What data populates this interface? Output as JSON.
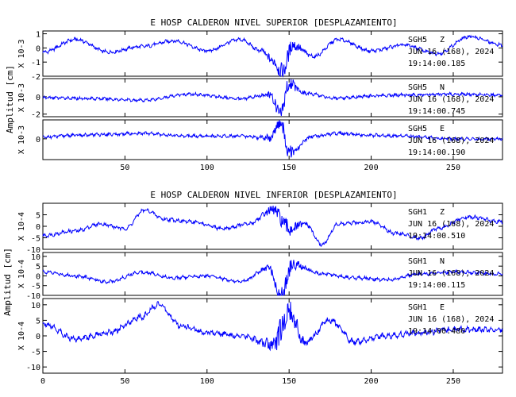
{
  "colors": {
    "trace": "#0000ff",
    "axis": "#000000",
    "background": "#ffffff"
  },
  "chart_data": [
    {
      "type": "line",
      "title": "E HOSP CALDERON NIVEL SUPERIOR [DESPLAZAMIENTO]",
      "ylabel": "Amplitud [cm]",
      "xlim": [
        0,
        280
      ],
      "xticks": [
        50,
        100,
        150,
        200,
        250
      ],
      "xtick_labels": [
        "50",
        "100",
        "150",
        "200",
        "250"
      ],
      "grid": false,
      "panels": [
        {
          "station": "SGH5",
          "component": "Z",
          "date": "JUN 16 (168), 2024",
          "time": "19:14:00.185",
          "scale_label": "X 10-3",
          "ylim": [
            -2,
            1.2
          ],
          "yticks": [
            -2,
            -1,
            0,
            1
          ],
          "ytick_labels": [
            "-2",
            "-1",
            "0",
            "1"
          ],
          "points": [
            [
              0,
              -0.3
            ],
            [
              20,
              0.6
            ],
            [
              40,
              -0.3
            ],
            [
              60,
              0.1
            ],
            [
              80,
              0.5
            ],
            [
              100,
              -0.2
            ],
            [
              120,
              0.6
            ],
            [
              133,
              -0.2
            ],
            [
              140,
              -0.9
            ],
            [
              146,
              -1.7
            ],
            [
              152,
              0.2
            ],
            [
              165,
              -0.6
            ],
            [
              180,
              0.6
            ],
            [
              200,
              -0.2
            ],
            [
              220,
              0.2
            ],
            [
              240,
              -0.4
            ],
            [
              260,
              0.8
            ],
            [
              280,
              0.2
            ]
          ]
        },
        {
          "station": "SGH5",
          "component": "N",
          "date": "JUN 16 (168), 2024",
          "time": "19:14:00.745",
          "scale_label": "X 10-3",
          "ylim": [
            -2.3,
            2.1
          ],
          "yticks": [
            -2,
            0
          ],
          "ytick_labels": [
            "-2",
            "0"
          ],
          "points": [
            [
              0,
              -0.1
            ],
            [
              30,
              -0.2
            ],
            [
              60,
              -0.4
            ],
            [
              90,
              0.3
            ],
            [
              120,
              -0.2
            ],
            [
              138,
              0.2
            ],
            [
              145,
              -1.8
            ],
            [
              150,
              1.6
            ],
            [
              160,
              0.4
            ],
            [
              180,
              -0.2
            ],
            [
              200,
              0.1
            ],
            [
              220,
              0.2
            ],
            [
              250,
              0.3
            ],
            [
              280,
              0.2
            ]
          ]
        },
        {
          "station": "SGH5",
          "component": "E",
          "date": "JUN 16 (168), 2024",
          "time": "19:14:00.190",
          "scale_label": "X 10-3",
          "ylim": [
            -2.3,
            2.1
          ],
          "yticks": [
            0
          ],
          "ytick_labels": [
            "0"
          ],
          "points": [
            [
              0,
              0.2
            ],
            [
              20,
              0.4
            ],
            [
              40,
              0.5
            ],
            [
              60,
              0.6
            ],
            [
              90,
              0.3
            ],
            [
              120,
              0.3
            ],
            [
              138,
              0.1
            ],
            [
              145,
              1.8
            ],
            [
              150,
              -1.5
            ],
            [
              165,
              0.3
            ],
            [
              180,
              0.6
            ],
            [
              200,
              0.4
            ],
            [
              220,
              0.3
            ],
            [
              250,
              0.0
            ],
            [
              280,
              0.0
            ]
          ]
        }
      ]
    },
    {
      "type": "line",
      "title": "E HOSP CALDERON NIVEL INFERIOR [DESPLAZAMIENTO]",
      "ylabel": "Amplitud [cm]",
      "xlim": [
        0,
        280
      ],
      "xticks": [
        0,
        50,
        100,
        150,
        200,
        250
      ],
      "xtick_labels": [
        "0",
        "50",
        "100",
        "150",
        "200",
        "250"
      ],
      "grid": false,
      "panels": [
        {
          "station": "SGH1",
          "component": "Z",
          "date": "JUN 16 (168), 2024",
          "time": "19:14:00.510",
          "scale_label": "X 10-4",
          "ylim": [
            -10,
            10
          ],
          "yticks": [
            -10,
            -5,
            0,
            5
          ],
          "ytick_labels": [
            "-10",
            "-5",
            "0",
            "5"
          ],
          "points": [
            [
              0,
              -4
            ],
            [
              20,
              -2
            ],
            [
              35,
              1
            ],
            [
              50,
              -1
            ],
            [
              62,
              7
            ],
            [
              75,
              3
            ],
            [
              90,
              2
            ],
            [
              110,
              -1
            ],
            [
              125,
              1
            ],
            [
              140,
              7
            ],
            [
              150,
              -1
            ],
            [
              160,
              1
            ],
            [
              170,
              -8
            ],
            [
              180,
              1
            ],
            [
              200,
              2
            ],
            [
              215,
              -3
            ],
            [
              230,
              -5
            ],
            [
              240,
              -1
            ],
            [
              260,
              4
            ],
            [
              280,
              2
            ]
          ]
        },
        {
          "station": "SGH1",
          "component": "N",
          "date": "JUN 16 (168), 2024",
          "time": "19:14:00.115",
          "scale_label": "X 10-4",
          "ylim": [
            -10,
            12
          ],
          "yticks": [
            -10,
            -5,
            0,
            5,
            10
          ],
          "ytick_labels": [
            "-10",
            "-5",
            "0",
            "5",
            "10"
          ],
          "points": [
            [
              0,
              2
            ],
            [
              20,
              0
            ],
            [
              40,
              -3
            ],
            [
              60,
              2
            ],
            [
              80,
              -1
            ],
            [
              100,
              0
            ],
            [
              120,
              -3
            ],
            [
              138,
              4
            ],
            [
              145,
              -10
            ],
            [
              152,
              6
            ],
            [
              170,
              1
            ],
            [
              190,
              -1
            ],
            [
              210,
              -2
            ],
            [
              230,
              1
            ],
            [
              250,
              2
            ],
            [
              280,
              1
            ]
          ]
        },
        {
          "station": "SGH1",
          "component": "E",
          "date": "JUN 16 (168), 2024",
          "time": "19:14:00.480",
          "scale_label": "X 10-4",
          "ylim": [
            -12,
            12
          ],
          "yticks": [
            -10,
            -5,
            0,
            5,
            10
          ],
          "ytick_labels": [
            "-10",
            "-5",
            "0",
            "5",
            "10"
          ],
          "points": [
            [
              0,
              4
            ],
            [
              20,
              -1
            ],
            [
              40,
              1
            ],
            [
              60,
              6
            ],
            [
              70,
              10
            ],
            [
              85,
              3
            ],
            [
              100,
              1
            ],
            [
              120,
              0
            ],
            [
              140,
              -3
            ],
            [
              150,
              7
            ],
            [
              160,
              -2
            ],
            [
              175,
              5
            ],
            [
              190,
              -2
            ],
            [
              210,
              0
            ],
            [
              230,
              1
            ],
            [
              250,
              2
            ],
            [
              280,
              2
            ]
          ]
        }
      ]
    }
  ]
}
